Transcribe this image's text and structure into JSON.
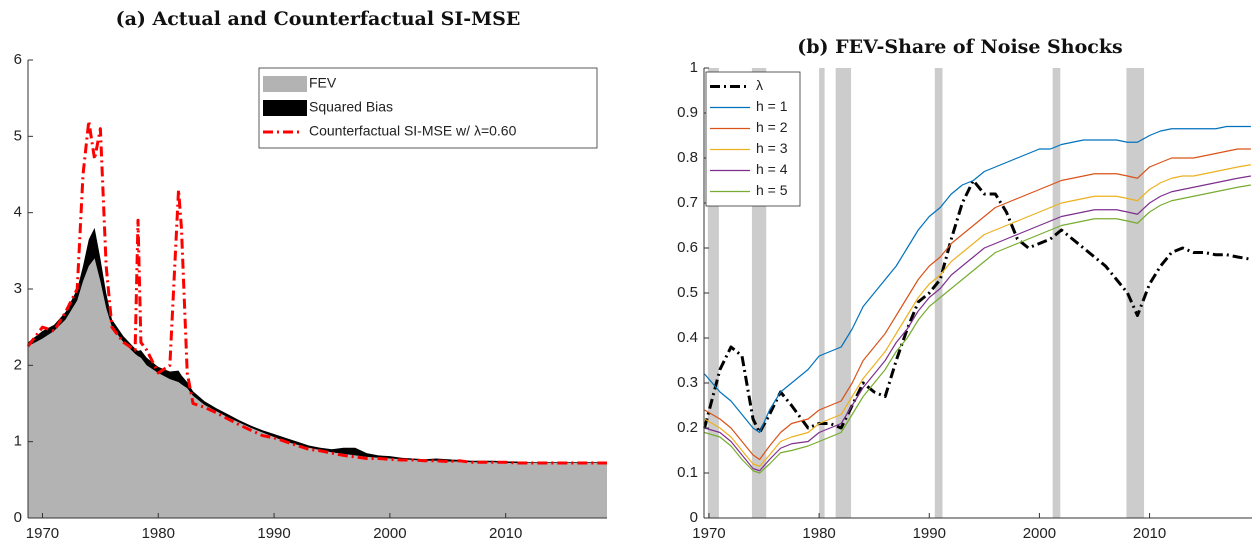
{
  "chart_data": [
    {
      "type": "area",
      "title": "(a) Actual and Counterfactual SI-MSE",
      "x": [
        1968.75,
        1970,
        1971,
        1972,
        1973,
        1973.5,
        1974,
        1974.5,
        1975,
        1975.5,
        1976,
        1977,
        1978,
        1978.25,
        1978.5,
        1979,
        1980,
        1981,
        1981.75,
        1982,
        1982.5,
        1983,
        1984,
        1985,
        1986,
        1987,
        1988,
        1989,
        1990,
        1991,
        1992,
        1993,
        1994,
        1995,
        1996,
        1997,
        1998,
        1999,
        2000,
        2001,
        2002,
        2003,
        2004,
        2005,
        2006,
        2007,
        2008,
        2009,
        2010,
        2011,
        2012,
        2013,
        2014,
        2015,
        2016,
        2017,
        2018,
        2018.75
      ],
      "series": [
        {
          "name": "FEV",
          "kind": "area",
          "color": "#b3b3b3",
          "values": [
            2.25,
            2.35,
            2.45,
            2.6,
            2.85,
            3.1,
            3.3,
            3.4,
            3.1,
            2.75,
            2.5,
            2.3,
            2.15,
            2.12,
            2.1,
            2.0,
            1.9,
            1.82,
            1.78,
            1.75,
            1.7,
            1.6,
            1.48,
            1.4,
            1.32,
            1.25,
            1.18,
            1.12,
            1.06,
            1.0,
            0.96,
            0.92,
            0.89,
            0.86,
            0.84,
            0.82,
            0.8,
            0.79,
            0.78,
            0.77,
            0.76,
            0.75,
            0.75,
            0.74,
            0.74,
            0.73,
            0.73,
            0.73,
            0.72,
            0.72,
            0.72,
            0.72,
            0.72,
            0.72,
            0.72,
            0.72,
            0.72,
            0.72
          ]
        },
        {
          "name": "Squared Bias",
          "kind": "area",
          "color": "#000000",
          "values": [
            0.05,
            0.1,
            0.08,
            0.1,
            0.15,
            0.2,
            0.35,
            0.4,
            0.3,
            0.2,
            0.1,
            0.08,
            0.07,
            0.07,
            0.1,
            0.1,
            0.08,
            0.1,
            0.15,
            0.12,
            0.08,
            0.06,
            0.05,
            0.04,
            0.04,
            0.03,
            0.03,
            0.03,
            0.04,
            0.05,
            0.04,
            0.03,
            0.03,
            0.04,
            0.08,
            0.1,
            0.05,
            0.03,
            0.03,
            0.02,
            0.02,
            0.02,
            0.03,
            0.03,
            0.02,
            0.02,
            0.02,
            0.02,
            0.02,
            0.02,
            0.01,
            0.01,
            0.01,
            0.01,
            0.01,
            0.01,
            0.01,
            0.01
          ]
        },
        {
          "name": "Counterfactual SI-MSE w/ λ=0.60",
          "kind": "line",
          "dash": "dash-dot",
          "width": 3,
          "color": "#ff0000",
          "values": [
            2.25,
            2.5,
            2.45,
            2.7,
            3.0,
            4.5,
            5.2,
            4.7,
            5.1,
            3.3,
            2.5,
            2.3,
            2.2,
            3.9,
            2.3,
            2.2,
            1.9,
            2.0,
            4.3,
            3.8,
            1.9,
            1.5,
            1.45,
            1.38,
            1.3,
            1.22,
            1.15,
            1.08,
            1.05,
            1.0,
            0.95,
            0.9,
            0.88,
            0.85,
            0.82,
            0.8,
            0.78,
            0.78,
            0.77,
            0.76,
            0.76,
            0.75,
            0.75,
            0.74,
            0.75,
            0.73,
            0.73,
            0.73,
            0.73,
            0.72,
            0.72,
            0.72,
            0.72,
            0.72,
            0.72,
            0.72,
            0.72,
            0.72
          ]
        }
      ],
      "xlim": [
        1968.75,
        2018.75
      ],
      "xticks": [
        1970,
        1980,
        1990,
        2000,
        2010
      ],
      "ylim": [
        0,
        6
      ],
      "yticks": [
        0,
        1,
        2,
        3,
        4,
        5,
        6
      ],
      "legend": "top-right"
    },
    {
      "type": "line",
      "title": "(b) FEV-Share of Noise Shocks",
      "x": [
        1969.6,
        1971,
        1972,
        1973,
        1974,
        1974.6,
        1975.5,
        1976.5,
        1977.5,
        1979,
        1980,
        1981,
        1982,
        1983,
        1984,
        1985,
        1986,
        1987,
        1988,
        1989,
        1990,
        1991,
        1992,
        1993,
        1994,
        1995,
        1996,
        1997,
        1998,
        1999,
        2000,
        2001,
        2002,
        2003,
        2004,
        2005,
        2006,
        2007,
        2008,
        2008.9,
        2010,
        2011,
        2012,
        2013,
        2014,
        2015,
        2016,
        2017,
        2018,
        2019.2
      ],
      "shading": [
        [
          1969.9,
          1970.9
        ],
        [
          1973.9,
          1975.2
        ],
        [
          1980.0,
          1980.5
        ],
        [
          1981.5,
          1982.9
        ],
        [
          1990.5,
          1991.2
        ],
        [
          2001.2,
          2001.9
        ],
        [
          2007.9,
          2009.5
        ]
      ],
      "shading_color": "#cccccc",
      "series": [
        {
          "name": "λ",
          "kind": "line",
          "dash": "dash-dot",
          "width": 3,
          "color": "#000000",
          "values": [
            0.2,
            0.33,
            0.38,
            0.36,
            0.22,
            0.19,
            0.23,
            0.28,
            0.25,
            0.2,
            0.21,
            0.21,
            0.2,
            0.25,
            0.3,
            0.28,
            0.27,
            0.35,
            0.42,
            0.48,
            0.5,
            0.53,
            0.62,
            0.7,
            0.75,
            0.72,
            0.72,
            0.68,
            0.62,
            0.6,
            0.61,
            0.62,
            0.64,
            0.62,
            0.6,
            0.58,
            0.56,
            0.53,
            0.5,
            0.45,
            0.52,
            0.56,
            0.59,
            0.6,
            0.59,
            0.59,
            0.585,
            0.585,
            0.58,
            0.575
          ]
        },
        {
          "name": "h = 1",
          "kind": "line",
          "width": 1.2,
          "color": "#0072bd",
          "values": [
            0.32,
            0.28,
            0.26,
            0.23,
            0.2,
            0.19,
            0.24,
            0.28,
            0.3,
            0.33,
            0.36,
            0.37,
            0.38,
            0.42,
            0.47,
            0.5,
            0.53,
            0.56,
            0.6,
            0.64,
            0.67,
            0.69,
            0.72,
            0.74,
            0.75,
            0.77,
            0.78,
            0.79,
            0.8,
            0.81,
            0.82,
            0.82,
            0.83,
            0.835,
            0.84,
            0.84,
            0.84,
            0.84,
            0.835,
            0.835,
            0.85,
            0.86,
            0.865,
            0.865,
            0.865,
            0.865,
            0.865,
            0.87,
            0.87,
            0.87
          ]
        },
        {
          "name": "h = 2",
          "kind": "line",
          "width": 1.2,
          "color": "#d95319",
          "values": [
            0.24,
            0.22,
            0.2,
            0.17,
            0.14,
            0.13,
            0.16,
            0.19,
            0.21,
            0.22,
            0.24,
            0.25,
            0.26,
            0.3,
            0.35,
            0.38,
            0.41,
            0.45,
            0.49,
            0.53,
            0.56,
            0.58,
            0.61,
            0.63,
            0.65,
            0.67,
            0.69,
            0.7,
            0.71,
            0.72,
            0.73,
            0.74,
            0.75,
            0.755,
            0.76,
            0.765,
            0.765,
            0.765,
            0.76,
            0.755,
            0.78,
            0.79,
            0.8,
            0.8,
            0.8,
            0.805,
            0.81,
            0.815,
            0.82,
            0.82
          ]
        },
        {
          "name": "h = 3",
          "kind": "line",
          "width": 1.2,
          "color": "#edb120",
          "values": [
            0.22,
            0.2,
            0.18,
            0.15,
            0.12,
            0.115,
            0.14,
            0.17,
            0.18,
            0.19,
            0.21,
            0.22,
            0.23,
            0.27,
            0.31,
            0.34,
            0.37,
            0.41,
            0.45,
            0.49,
            0.52,
            0.54,
            0.57,
            0.59,
            0.61,
            0.63,
            0.64,
            0.65,
            0.66,
            0.67,
            0.68,
            0.69,
            0.7,
            0.705,
            0.71,
            0.715,
            0.715,
            0.715,
            0.71,
            0.705,
            0.73,
            0.745,
            0.755,
            0.76,
            0.76,
            0.765,
            0.77,
            0.775,
            0.78,
            0.785
          ]
        },
        {
          "name": "h = 4",
          "kind": "line",
          "width": 1.2,
          "color": "#7e2f8e",
          "values": [
            0.2,
            0.19,
            0.17,
            0.14,
            0.11,
            0.105,
            0.13,
            0.155,
            0.165,
            0.17,
            0.19,
            0.2,
            0.21,
            0.25,
            0.29,
            0.32,
            0.35,
            0.39,
            0.42,
            0.46,
            0.49,
            0.51,
            0.54,
            0.56,
            0.58,
            0.6,
            0.61,
            0.62,
            0.63,
            0.64,
            0.65,
            0.66,
            0.67,
            0.675,
            0.68,
            0.685,
            0.685,
            0.685,
            0.68,
            0.675,
            0.7,
            0.715,
            0.725,
            0.73,
            0.735,
            0.74,
            0.745,
            0.75,
            0.755,
            0.76
          ]
        },
        {
          "name": "h = 5",
          "kind": "line",
          "width": 1.2,
          "color": "#77ac30",
          "values": [
            0.19,
            0.18,
            0.16,
            0.13,
            0.105,
            0.1,
            0.12,
            0.145,
            0.15,
            0.16,
            0.17,
            0.18,
            0.19,
            0.23,
            0.27,
            0.3,
            0.33,
            0.37,
            0.4,
            0.44,
            0.47,
            0.49,
            0.51,
            0.53,
            0.55,
            0.57,
            0.59,
            0.6,
            0.61,
            0.62,
            0.63,
            0.64,
            0.65,
            0.655,
            0.66,
            0.665,
            0.665,
            0.665,
            0.66,
            0.655,
            0.68,
            0.695,
            0.705,
            0.71,
            0.715,
            0.72,
            0.725,
            0.73,
            0.735,
            0.74
          ]
        }
      ],
      "xlim": [
        1969.55,
        2019.3
      ],
      "xticks": [
        1970,
        1980,
        1990,
        2000,
        2010
      ],
      "ylim": [
        0,
        1
      ],
      "yticks": [
        0,
        0.1,
        0.2,
        0.3,
        0.4,
        0.5,
        0.6,
        0.7,
        0.8,
        0.9,
        1
      ],
      "legend": "top-left"
    }
  ]
}
